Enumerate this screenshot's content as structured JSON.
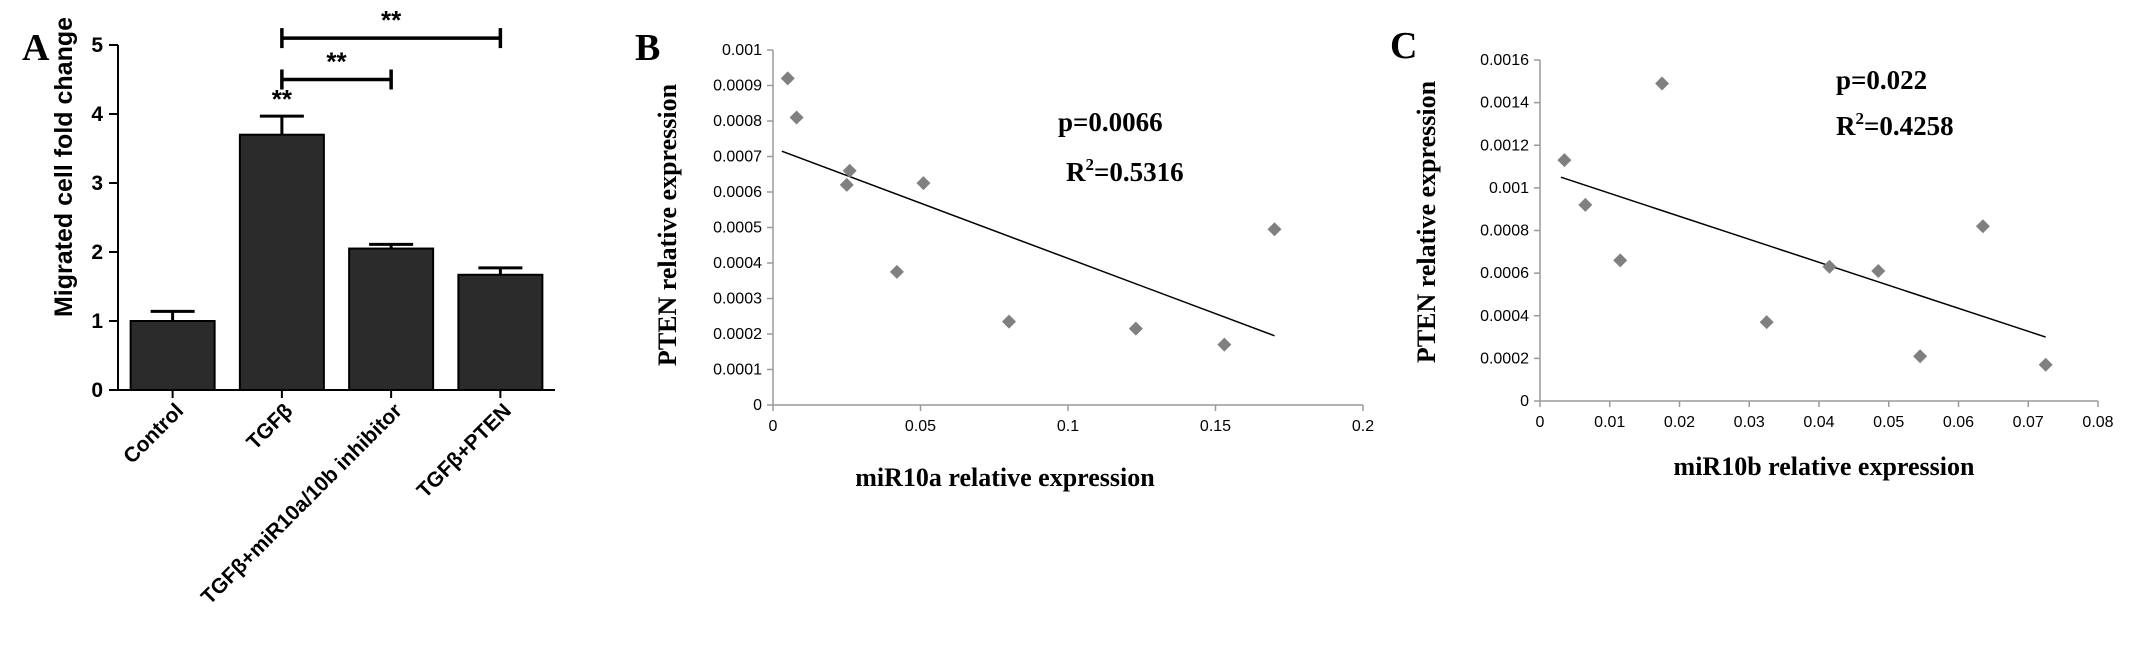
{
  "chart_data": [
    {
      "panel": "A",
      "type": "bar",
      "ylabel": "Migrated cell fold change",
      "ylim": [
        0,
        5
      ],
      "yticks": [
        0,
        1,
        2,
        3,
        4,
        5
      ],
      "categories": [
        "Control",
        "TGFβ",
        "TGFβ+miR10a/10b inhibitor",
        "TGFβ+PTEN"
      ],
      "values": [
        1.0,
        3.7,
        2.05,
        1.67
      ],
      "errors": [
        0.14,
        0.27,
        0.06,
        0.1
      ],
      "bar_color": "#2b2b2b",
      "bar_marks": [
        {
          "category": "TGFβ",
          "label": "**"
        }
      ],
      "comparisons": [
        {
          "from": "TGFβ",
          "to": "TGFβ+miR10a/10b inhibitor",
          "label": "**",
          "level": 4.5
        },
        {
          "from": "TGFβ",
          "to": "TGFβ+PTEN",
          "label": "**",
          "level": 5.1
        }
      ]
    },
    {
      "panel": "B",
      "type": "scatter",
      "xlabel": "miR10a relative expression",
      "ylabel": "PTEN relative expression",
      "xlim": [
        0,
        0.2
      ],
      "ylim": [
        0,
        0.001
      ],
      "xticks": [
        "0",
        "0.05",
        "0.1",
        "0.15",
        "0.2"
      ],
      "yticks": [
        "0",
        "0.0001",
        "0.0002",
        "0.0003",
        "0.0004",
        "0.0005",
        "0.0006",
        "0.0007",
        "0.0008",
        "0.0009",
        "0.001"
      ],
      "x": [
        0.005,
        0.008,
        0.025,
        0.026,
        0.042,
        0.051,
        0.08,
        0.123,
        0.153,
        0.17
      ],
      "y": [
        0.00092,
        0.00081,
        0.00062,
        0.00066,
        0.000375,
        0.000625,
        0.000235,
        0.000215,
        0.00017,
        0.000495
      ],
      "trendline": {
        "x": [
          0.003,
          0.17
        ],
        "y": [
          0.000715,
          0.000195
        ]
      },
      "annotations": {
        "p": "p=0.0066",
        "r2_prefix": "R",
        "r2_sup": "2",
        "r2_value": "=0.5316"
      },
      "marker_color": "#808080"
    },
    {
      "panel": "C",
      "type": "scatter",
      "xlabel": "miR10b relative expression",
      "ylabel": "PTEN relative expression",
      "xlim": [
        0,
        0.08
      ],
      "ylim": [
        0,
        0.0016
      ],
      "xticks": [
        "0",
        "0.01",
        "0.02",
        "0.03",
        "0.04",
        "0.05",
        "0.06",
        "0.07",
        "0.08"
      ],
      "yticks": [
        "0",
        "0.0002",
        "0.0004",
        "0.0006",
        "0.0008",
        "0.001",
        "0.0012",
        "0.0014",
        "0.0016"
      ],
      "x": [
        0.0035,
        0.0065,
        0.0115,
        0.0175,
        0.0325,
        0.0415,
        0.0485,
        0.0545,
        0.0635,
        0.0725
      ],
      "y": [
        0.00113,
        0.00092,
        0.00066,
        0.00149,
        0.00037,
        0.00063,
        0.00061,
        0.00021,
        0.00082,
        0.00017
      ],
      "trendline": {
        "x": [
          0.003,
          0.0725
        ],
        "y": [
          0.00105,
          0.0003
        ]
      },
      "annotations": {
        "p": "p=0.022",
        "r2_prefix": "R",
        "r2_sup": "2",
        "r2_value": "=0.4258"
      },
      "marker_color": "#808080"
    }
  ]
}
